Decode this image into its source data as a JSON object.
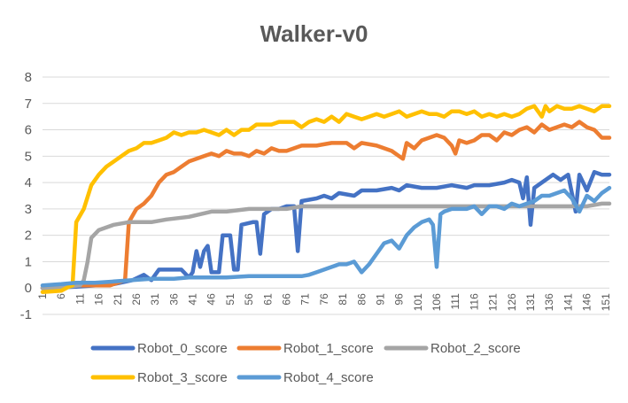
{
  "chart_data": {
    "type": "line",
    "title": "Walker-v0",
    "xlabel": "",
    "ylabel": "",
    "x_range": [
      1,
      152
    ],
    "ylim": [
      -1,
      8
    ],
    "yticks": [
      -1,
      0,
      1,
      2,
      3,
      4,
      5,
      6,
      7,
      8
    ],
    "xticks": [
      1,
      6,
      11,
      16,
      21,
      26,
      31,
      36,
      41,
      46,
      51,
      56,
      61,
      66,
      71,
      76,
      81,
      86,
      91,
      96,
      101,
      106,
      111,
      116,
      121,
      126,
      131,
      136,
      141,
      146,
      151
    ],
    "grid": "horizontal",
    "legend_position": "bottom",
    "series": [
      {
        "name": "Robot_0_score",
        "color": "#4472C4",
        "points": [
          [
            1,
            0
          ],
          [
            10,
            0.05
          ],
          [
            20,
            0.15
          ],
          [
            25,
            0.3
          ],
          [
            28,
            0.5
          ],
          [
            30,
            0.3
          ],
          [
            32,
            0.7
          ],
          [
            38,
            0.7
          ],
          [
            40,
            0.4
          ],
          [
            41,
            0.6
          ],
          [
            42,
            1.4
          ],
          [
            43,
            0.8
          ],
          [
            44,
            1.4
          ],
          [
            45,
            1.6
          ],
          [
            46,
            0.6
          ],
          [
            48,
            0.6
          ],
          [
            49,
            2.0
          ],
          [
            51,
            2.0
          ],
          [
            52,
            0.7
          ],
          [
            53,
            0.7
          ],
          [
            54,
            2.4
          ],
          [
            57,
            2.5
          ],
          [
            58,
            2.5
          ],
          [
            59,
            1.3
          ],
          [
            60,
            2.8
          ],
          [
            62,
            3.0
          ],
          [
            64,
            3.0
          ],
          [
            66,
            3.1
          ],
          [
            68,
            3.1
          ],
          [
            69,
            1.4
          ],
          [
            70,
            3.3
          ],
          [
            74,
            3.4
          ],
          [
            76,
            3.5
          ],
          [
            78,
            3.4
          ],
          [
            80,
            3.6
          ],
          [
            84,
            3.5
          ],
          [
            86,
            3.7
          ],
          [
            90,
            3.7
          ],
          [
            94,
            3.8
          ],
          [
            96,
            3.7
          ],
          [
            98,
            3.9
          ],
          [
            102,
            3.8
          ],
          [
            106,
            3.8
          ],
          [
            110,
            3.9
          ],
          [
            114,
            3.8
          ],
          [
            116,
            3.9
          ],
          [
            120,
            3.9
          ],
          [
            124,
            4.0
          ],
          [
            126,
            4.1
          ],
          [
            128,
            4.0
          ],
          [
            129,
            3.4
          ],
          [
            130,
            4.2
          ],
          [
            131,
            2.4
          ],
          [
            132,
            3.8
          ],
          [
            134,
            4.0
          ],
          [
            137,
            4.3
          ],
          [
            139,
            4.1
          ],
          [
            141,
            4.3
          ],
          [
            143,
            2.9
          ],
          [
            144,
            4.3
          ],
          [
            146,
            3.7
          ],
          [
            148,
            4.4
          ],
          [
            150,
            4.3
          ],
          [
            152,
            4.3
          ]
        ]
      },
      {
        "name": "Robot_1_score",
        "color": "#ED7D31",
        "points": [
          [
            1,
            0
          ],
          [
            10,
            0.1
          ],
          [
            15,
            0.1
          ],
          [
            19,
            0.1
          ],
          [
            21,
            0.2
          ],
          [
            23,
            0.3
          ],
          [
            24,
            2.5
          ],
          [
            26,
            3.0
          ],
          [
            28,
            3.2
          ],
          [
            30,
            3.5
          ],
          [
            32,
            4.0
          ],
          [
            34,
            4.3
          ],
          [
            36,
            4.4
          ],
          [
            38,
            4.6
          ],
          [
            40,
            4.8
          ],
          [
            42,
            4.9
          ],
          [
            44,
            5.0
          ],
          [
            46,
            5.1
          ],
          [
            48,
            5.0
          ],
          [
            50,
            5.2
          ],
          [
            52,
            5.1
          ],
          [
            54,
            5.1
          ],
          [
            56,
            5.0
          ],
          [
            58,
            5.2
          ],
          [
            60,
            5.1
          ],
          [
            62,
            5.3
          ],
          [
            64,
            5.2
          ],
          [
            66,
            5.2
          ],
          [
            68,
            5.3
          ],
          [
            70,
            5.4
          ],
          [
            74,
            5.4
          ],
          [
            78,
            5.5
          ],
          [
            82,
            5.5
          ],
          [
            84,
            5.3
          ],
          [
            86,
            5.5
          ],
          [
            90,
            5.4
          ],
          [
            94,
            5.2
          ],
          [
            96,
            5.0
          ],
          [
            97,
            4.9
          ],
          [
            98,
            5.5
          ],
          [
            100,
            5.3
          ],
          [
            102,
            5.6
          ],
          [
            104,
            5.7
          ],
          [
            106,
            5.8
          ],
          [
            108,
            5.7
          ],
          [
            110,
            5.4
          ],
          [
            111,
            5.1
          ],
          [
            112,
            5.6
          ],
          [
            114,
            5.5
          ],
          [
            116,
            5.6
          ],
          [
            118,
            5.8
          ],
          [
            120,
            5.8
          ],
          [
            122,
            5.6
          ],
          [
            124,
            5.9
          ],
          [
            126,
            5.8
          ],
          [
            128,
            6.0
          ],
          [
            130,
            6.1
          ],
          [
            132,
            5.9
          ],
          [
            134,
            6.2
          ],
          [
            136,
            6.0
          ],
          [
            138,
            6.1
          ],
          [
            140,
            6.2
          ],
          [
            142,
            6.1
          ],
          [
            144,
            6.3
          ],
          [
            146,
            6.1
          ],
          [
            148,
            6.0
          ],
          [
            150,
            5.7
          ],
          [
            152,
            5.7
          ]
        ]
      },
      {
        "name": "Robot_2_score",
        "color": "#A5A5A5",
        "points": [
          [
            1,
            0
          ],
          [
            8,
            0.05
          ],
          [
            11,
            0.1
          ],
          [
            12,
            0.3
          ],
          [
            13,
            1.0
          ],
          [
            14,
            1.9
          ],
          [
            16,
            2.2
          ],
          [
            18,
            2.3
          ],
          [
            20,
            2.4
          ],
          [
            24,
            2.5
          ],
          [
            30,
            2.5
          ],
          [
            34,
            2.6
          ],
          [
            40,
            2.7
          ],
          [
            46,
            2.9
          ],
          [
            50,
            2.9
          ],
          [
            56,
            3.0
          ],
          [
            62,
            3.0
          ],
          [
            66,
            3.0
          ],
          [
            70,
            3.1
          ],
          [
            80,
            3.1
          ],
          [
            90,
            3.1
          ],
          [
            100,
            3.1
          ],
          [
            110,
            3.1
          ],
          [
            120,
            3.1
          ],
          [
            130,
            3.1
          ],
          [
            140,
            3.1
          ],
          [
            146,
            3.1
          ],
          [
            150,
            3.2
          ],
          [
            152,
            3.2
          ]
        ]
      },
      {
        "name": "Robot_3_score",
        "color": "#FFC000",
        "points": [
          [
            1,
            -0.15
          ],
          [
            6,
            -0.1
          ],
          [
            8,
            0.05
          ],
          [
            9,
            0.1
          ],
          [
            10,
            2.5
          ],
          [
            12,
            3.0
          ],
          [
            14,
            3.9
          ],
          [
            16,
            4.3
          ],
          [
            18,
            4.6
          ],
          [
            20,
            4.8
          ],
          [
            22,
            5.0
          ],
          [
            24,
            5.2
          ],
          [
            26,
            5.3
          ],
          [
            28,
            5.5
          ],
          [
            30,
            5.5
          ],
          [
            32,
            5.6
          ],
          [
            34,
            5.7
          ],
          [
            36,
            5.9
          ],
          [
            38,
            5.8
          ],
          [
            40,
            5.9
          ],
          [
            42,
            5.9
          ],
          [
            44,
            6.0
          ],
          [
            46,
            5.9
          ],
          [
            48,
            5.8
          ],
          [
            50,
            6.0
          ],
          [
            52,
            5.8
          ],
          [
            54,
            6.0
          ],
          [
            56,
            6.0
          ],
          [
            58,
            6.2
          ],
          [
            60,
            6.2
          ],
          [
            62,
            6.2
          ],
          [
            64,
            6.3
          ],
          [
            66,
            6.3
          ],
          [
            68,
            6.3
          ],
          [
            70,
            6.1
          ],
          [
            72,
            6.3
          ],
          [
            74,
            6.4
          ],
          [
            76,
            6.3
          ],
          [
            78,
            6.5
          ],
          [
            80,
            6.3
          ],
          [
            82,
            6.6
          ],
          [
            84,
            6.5
          ],
          [
            86,
            6.4
          ],
          [
            88,
            6.5
          ],
          [
            90,
            6.6
          ],
          [
            92,
            6.5
          ],
          [
            94,
            6.6
          ],
          [
            96,
            6.7
          ],
          [
            98,
            6.5
          ],
          [
            100,
            6.6
          ],
          [
            102,
            6.7
          ],
          [
            104,
            6.6
          ],
          [
            106,
            6.6
          ],
          [
            108,
            6.5
          ],
          [
            110,
            6.7
          ],
          [
            112,
            6.7
          ],
          [
            114,
            6.6
          ],
          [
            116,
            6.7
          ],
          [
            118,
            6.5
          ],
          [
            120,
            6.6
          ],
          [
            122,
            6.5
          ],
          [
            124,
            6.6
          ],
          [
            126,
            6.5
          ],
          [
            128,
            6.6
          ],
          [
            130,
            6.8
          ],
          [
            132,
            6.9
          ],
          [
            134,
            6.5
          ],
          [
            135,
            6.9
          ],
          [
            136,
            6.7
          ],
          [
            138,
            6.9
          ],
          [
            140,
            6.8
          ],
          [
            142,
            6.8
          ],
          [
            144,
            6.9
          ],
          [
            146,
            6.8
          ],
          [
            148,
            6.7
          ],
          [
            150,
            6.9
          ],
          [
            152,
            6.9
          ]
        ]
      },
      {
        "name": "Robot_4_score",
        "color": "#5B9BD5",
        "points": [
          [
            1,
            0.1
          ],
          [
            6,
            0.15
          ],
          [
            10,
            0.2
          ],
          [
            15,
            0.2
          ],
          [
            20,
            0.25
          ],
          [
            25,
            0.3
          ],
          [
            30,
            0.35
          ],
          [
            36,
            0.35
          ],
          [
            40,
            0.4
          ],
          [
            46,
            0.4
          ],
          [
            50,
            0.4
          ],
          [
            56,
            0.45
          ],
          [
            60,
            0.45
          ],
          [
            66,
            0.45
          ],
          [
            70,
            0.45
          ],
          [
            72,
            0.5
          ],
          [
            74,
            0.6
          ],
          [
            76,
            0.7
          ],
          [
            78,
            0.8
          ],
          [
            80,
            0.9
          ],
          [
            82,
            0.9
          ],
          [
            84,
            1.0
          ],
          [
            86,
            0.6
          ],
          [
            88,
            0.9
          ],
          [
            90,
            1.3
          ],
          [
            92,
            1.7
          ],
          [
            94,
            1.8
          ],
          [
            96,
            1.5
          ],
          [
            98,
            2.0
          ],
          [
            100,
            2.3
          ],
          [
            102,
            2.5
          ],
          [
            104,
            2.6
          ],
          [
            105,
            2.4
          ],
          [
            106,
            0.8
          ],
          [
            107,
            2.8
          ],
          [
            108,
            2.9
          ],
          [
            110,
            3.0
          ],
          [
            112,
            3.0
          ],
          [
            114,
            3.0
          ],
          [
            116,
            3.1
          ],
          [
            118,
            2.8
          ],
          [
            120,
            3.1
          ],
          [
            122,
            3.1
          ],
          [
            124,
            3.0
          ],
          [
            126,
            3.2
          ],
          [
            128,
            3.1
          ],
          [
            130,
            3.2
          ],
          [
            132,
            3.3
          ],
          [
            134,
            3.5
          ],
          [
            136,
            3.5
          ],
          [
            138,
            3.6
          ],
          [
            140,
            3.7
          ],
          [
            142,
            3.4
          ],
          [
            144,
            2.9
          ],
          [
            146,
            3.5
          ],
          [
            148,
            3.3
          ],
          [
            150,
            3.6
          ],
          [
            152,
            3.8
          ]
        ]
      }
    ]
  }
}
